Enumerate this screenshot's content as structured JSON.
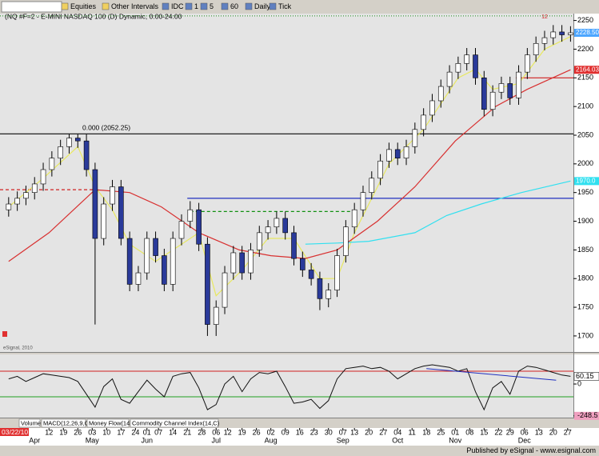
{
  "ui": {
    "toolbar": [
      "Equities",
      "Other Intervals",
      "IDC",
      "1",
      "5",
      "60",
      "Daily",
      "Tick"
    ],
    "tabs": [
      "Volume",
      "MACD(12,26,9,C)",
      "Money Flow(14)",
      "Commodity Channel Index(14,C)"
    ],
    "watermark": "eSignal, 2010",
    "status": "Published by eSignal - www.esignal.com"
  },
  "chart_data": {
    "type": "candlestick",
    "title": "(NQ #F=2 - E-MINI NASDAQ 100 (D) Dynamic, 0:00-24:00",
    "start_label": "03/22/10",
    "up_color": "#ffffff",
    "down_color": "#2a3a9a",
    "xlim": [
      -3,
      196
    ],
    "ylim": [
      1672,
      2262
    ],
    "yticks": [
      2250,
      2200,
      2150,
      2100,
      2050,
      2000,
      1950,
      1900,
      1850,
      1800,
      1750,
      1700
    ],
    "xticks": [
      {
        "value": 14,
        "label": "12"
      },
      {
        "value": 19,
        "label": "19"
      },
      {
        "value": 24,
        "label": "26"
      },
      {
        "value": 29,
        "label": "03"
      },
      {
        "value": 34,
        "label": "10"
      },
      {
        "value": 39,
        "label": "17"
      },
      {
        "value": 44,
        "label": "24"
      },
      {
        "value": 48,
        "label": "01"
      },
      {
        "value": 52,
        "label": "07"
      },
      {
        "value": 57,
        "label": "14"
      },
      {
        "value": 62,
        "label": "21"
      },
      {
        "value": 67,
        "label": "28"
      },
      {
        "value": 72,
        "label": "06"
      },
      {
        "value": 76,
        "label": "12"
      },
      {
        "value": 81,
        "label": "19"
      },
      {
        "value": 86,
        "label": "26"
      },
      {
        "value": 91,
        "label": "02"
      },
      {
        "value": 96,
        "label": "09"
      },
      {
        "value": 101,
        "label": "16"
      },
      {
        "value": 106,
        "label": "23"
      },
      {
        "value": 111,
        "label": "30"
      },
      {
        "value": 116,
        "label": "07"
      },
      {
        "value": 120,
        "label": "13"
      },
      {
        "value": 125,
        "label": "20"
      },
      {
        "value": 130,
        "label": "27"
      },
      {
        "value": 135,
        "label": "04"
      },
      {
        "value": 140,
        "label": "11"
      },
      {
        "value": 145,
        "label": "18"
      },
      {
        "value": 150,
        "label": "25"
      },
      {
        "value": 155,
        "label": "01"
      },
      {
        "value": 160,
        "label": "08"
      },
      {
        "value": 165,
        "label": "15"
      },
      {
        "value": 170,
        "label": "22"
      },
      {
        "value": 174,
        "label": "29"
      },
      {
        "value": 179,
        "label": "06"
      },
      {
        "value": 184,
        "label": "13"
      },
      {
        "value": 189,
        "label": "20"
      },
      {
        "value": 194,
        "label": "27"
      }
    ],
    "months": [
      {
        "value": 9,
        "label": "Apr"
      },
      {
        "value": 29,
        "label": "May"
      },
      {
        "value": 48,
        "label": "Jun"
      },
      {
        "value": 72,
        "label": "Jul"
      },
      {
        "value": 91,
        "label": "Aug"
      },
      {
        "value": 116,
        "label": "Sep"
      },
      {
        "value": 135,
        "label": "Oct"
      },
      {
        "value": 155,
        "label": "Nov"
      },
      {
        "value": 179,
        "label": "Dec"
      }
    ],
    "x": [
      0,
      3,
      6,
      9,
      12,
      15,
      18,
      21,
      24,
      27,
      30,
      33,
      36,
      39,
      42,
      45,
      48,
      51,
      54,
      57,
      60,
      63,
      66,
      69,
      72,
      75,
      78,
      81,
      84,
      87,
      90,
      93,
      96,
      99,
      102,
      105,
      108,
      111,
      114,
      117,
      120,
      123,
      126,
      129,
      132,
      135,
      138,
      141,
      144,
      147,
      150,
      153,
      156,
      159,
      162,
      165,
      168,
      171,
      174,
      177,
      180,
      183,
      186,
      189,
      192,
      195
    ],
    "open": [
      1920,
      1930,
      1940,
      1950,
      1965,
      1990,
      2010,
      2030,
      2045,
      2040,
      1990,
      1870,
      1930,
      1960,
      1870,
      1790,
      1810,
      1870,
      1840,
      1790,
      1870,
      1900,
      1920,
      1860,
      1720,
      1750,
      1810,
      1845,
      1810,
      1850,
      1880,
      1890,
      1905,
      1880,
      1835,
      1815,
      1800,
      1765,
      1780,
      1840,
      1890,
      1920,
      1950,
      1975,
      2005,
      2025,
      2010,
      2030,
      2060,
      2085,
      2110,
      2135,
      2160,
      2175,
      2190,
      2150,
      2095,
      2125,
      2140,
      2115,
      2160,
      2190,
      2210,
      2220,
      2230,
      2225
    ],
    "high": [
      1942,
      1952,
      1962,
      1977,
      2002,
      2022,
      2042,
      2052.25,
      2052,
      2052,
      2002,
      1942,
      1972,
      1972,
      1882,
      1822,
      1882,
      1882,
      1852,
      1882,
      1912,
      1935,
      1932,
      1872,
      1762,
      1822,
      1857,
      1857,
      1862,
      1892,
      1902,
      1917,
      1917,
      1892,
      1847,
      1827,
      1812,
      1792,
      1852,
      1902,
      1932,
      1962,
      1987,
      2017,
      2037,
      2037,
      2042,
      2072,
      2097,
      2122,
      2147,
      2172,
      2187,
      2202,
      2202,
      2162,
      2137,
      2152,
      2152,
      2172,
      2202,
      2222,
      2232,
      2242,
      2242,
      2240
    ],
    "low": [
      1908,
      1918,
      1928,
      1938,
      1953,
      1978,
      1998,
      2018,
      2028,
      1978,
      1720,
      1858,
      1918,
      1858,
      1778,
      1778,
      1798,
      1828,
      1778,
      1778,
      1858,
      1888,
      1848,
      1700,
      1700,
      1738,
      1798,
      1798,
      1798,
      1838,
      1868,
      1878,
      1868,
      1823,
      1803,
      1788,
      1745,
      1750,
      1768,
      1828,
      1878,
      1908,
      1938,
      1963,
      1993,
      1998,
      1998,
      2018,
      2048,
      2073,
      2098,
      2123,
      2148,
      2163,
      2138,
      2083,
      2083,
      2113,
      2103,
      2103,
      2148,
      2178,
      2198,
      2208,
      2213,
      2213
    ],
    "close": [
      1930,
      1940,
      1950,
      1965,
      1990,
      2010,
      2030,
      2045,
      2040,
      1990,
      1870,
      1930,
      1960,
      1870,
      1790,
      1810,
      1870,
      1840,
      1790,
      1870,
      1900,
      1920,
      1860,
      1720,
      1750,
      1810,
      1845,
      1810,
      1850,
      1880,
      1890,
      1905,
      1880,
      1835,
      1815,
      1800,
      1765,
      1780,
      1840,
      1890,
      1920,
      1950,
      1975,
      2005,
      2025,
      2010,
      2030,
      2060,
      2085,
      2110,
      2135,
      2160,
      2175,
      2190,
      2150,
      2095,
      2125,
      2140,
      2115,
      2160,
      2190,
      2210,
      2220,
      2230,
      2225,
      2228.5
    ],
    "lines": [
      {
        "color": "#e8e860",
        "x": [
          0,
          12,
          24,
          30,
          36,
          42,
          51,
          60,
          66,
          72,
          81,
          90,
          99,
          108,
          114,
          120,
          132,
          144,
          156,
          162,
          168,
          177,
          186,
          195
        ],
        "values": [
          1925,
          1975,
          2030,
          1960,
          1920,
          1860,
          1830,
          1860,
          1880,
          1770,
          1815,
          1870,
          1870,
          1800,
          1800,
          1880,
          2000,
          2060,
          2150,
          2165,
          2130,
          2140,
          2200,
          2222
        ]
      },
      {
        "color": "#d83030",
        "x": [
          0,
          14,
          30,
          42,
          53,
          66,
          80,
          91,
          103,
          114,
          128,
          141,
          155,
          169,
          180,
          195
        ],
        "values": [
          1830,
          1880,
          1955,
          1950,
          1925,
          1880,
          1850,
          1840,
          1835,
          1850,
          1900,
          1960,
          2040,
          2100,
          2130,
          2164.03
        ]
      },
      {
        "color": "#30e0f0",
        "x": [
          103,
          114,
          125,
          141,
          152,
          164,
          178,
          195
        ],
        "values": [
          1860,
          1862,
          1865,
          1880,
          1910,
          1930,
          1950,
          1970
        ]
      }
    ],
    "levels": [
      {
        "value": 2258,
        "x": [
          -3,
          196
        ],
        "color": "#40a040",
        "dash": "1,2"
      },
      {
        "value": 2052.25,
        "x": [
          -3,
          196
        ],
        "color": "#202020",
        "dash": "",
        "label": "0.000 (2052.25)"
      },
      {
        "value": 1955,
        "x": [
          -3,
          30
        ],
        "color": "#d02020",
        "dash": "4,3"
      },
      {
        "value": 1940,
        "x": [
          62,
          196
        ],
        "color": "#2030c0",
        "dash": ""
      },
      {
        "value": 1917,
        "x": [
          63,
          119
        ],
        "color": "#109010",
        "dash": "4,3"
      },
      {
        "value": 2150,
        "x": [
          176,
          196
        ],
        "color": "#d02020",
        "dash": ""
      }
    ],
    "annotations": [
      {
        "text": "12",
        "x": 186,
        "y": 2256,
        "color": "#d02020"
      }
    ],
    "price_markers": [
      {
        "value": 2228.5,
        "label": "2228.50",
        "color": "#4da6ff"
      },
      {
        "value": 2164.03,
        "label": "2164.03",
        "color": "#e03030"
      },
      {
        "value": 1970,
        "label": "1970.0",
        "color": "#30e0f0"
      }
    ],
    "cci": {
      "values": [
        40,
        60,
        20,
        50,
        80,
        70,
        60,
        50,
        20,
        -80,
        -180,
        -20,
        40,
        -120,
        -150,
        -60,
        30,
        -40,
        -100,
        60,
        80,
        90,
        -30,
        -200,
        -160,
        0,
        60,
        -60,
        40,
        90,
        80,
        100,
        -20,
        -150,
        -140,
        -120,
        -190,
        -130,
        40,
        120,
        130,
        140,
        120,
        130,
        100,
        40,
        80,
        120,
        140,
        150,
        140,
        130,
        100,
        120,
        -60,
        -200,
        -30,
        20,
        -80,
        100,
        140,
        130,
        110,
        90,
        70,
        60.15
      ],
      "last_label": "60.15",
      "y2lim": [
        -262,
        231
      ],
      "y2ticks": [
        0,
        {
          "value": -248.5,
          "label": "-248.5"
        }
      ],
      "levels": [
        {
          "value": 100,
          "color": "#d02020"
        },
        {
          "value": -100,
          "color": "#20a020"
        }
      ],
      "trendline": {
        "x": [
          145,
          190
        ],
        "values": [
          120,
          30
        ],
        "color": "#2030c0"
      }
    }
  }
}
